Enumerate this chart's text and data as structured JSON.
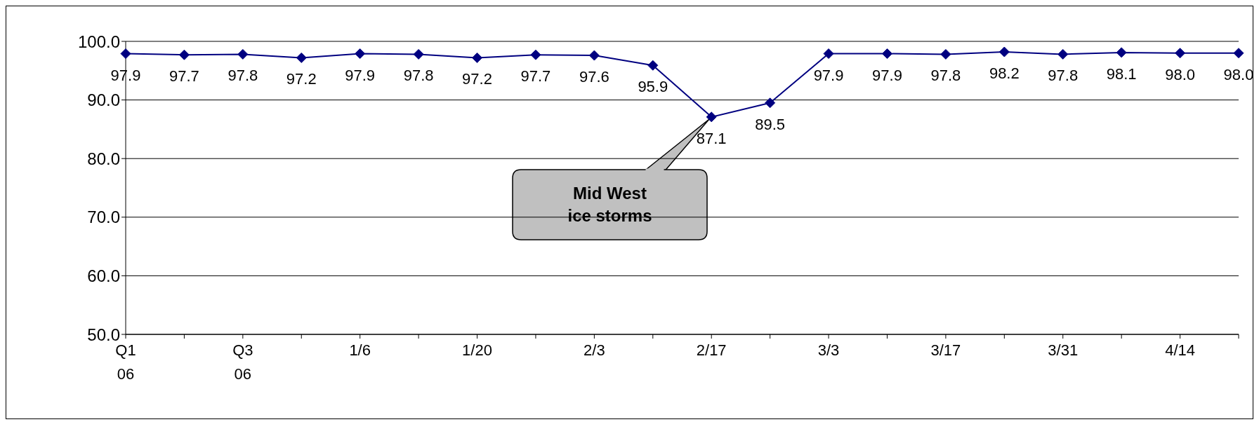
{
  "chart_data": {
    "type": "line",
    "categories": [
      "Q1 06",
      null,
      "Q3 06",
      null,
      "1/6",
      null,
      "1/20",
      null,
      "2/3",
      null,
      "2/17",
      null,
      "3/3",
      null,
      "3/17",
      null,
      "3/31",
      null,
      "4/14",
      null
    ],
    "series": [
      {
        "color": "#000080",
        "values": [
          97.9,
          97.7,
          97.8,
          97.2,
          97.9,
          97.8,
          97.2,
          97.7,
          97.6,
          95.9,
          87.1,
          89.5,
          97.9,
          97.9,
          97.8,
          98.2,
          97.8,
          98.1,
          98.0,
          98.0
        ],
        "value_labels": [
          "97.9",
          "97.7",
          "97.8",
          "97.2",
          "97.9",
          "97.8",
          "97.2",
          "97.7",
          "97.6",
          "95.9",
          "87.1",
          "89.5",
          "97.9",
          "97.9",
          "97.8",
          "98.2",
          "97.8",
          "98.1",
          "98.0",
          "98.0"
        ]
      }
    ],
    "ylim": [
      50,
      100
    ],
    "yticks": [
      {
        "value": 50,
        "label": "50.0"
      },
      {
        "value": 60,
        "label": "60.0"
      },
      {
        "value": 70,
        "label": "70.0"
      },
      {
        "value": 80,
        "label": "80.0"
      },
      {
        "value": 90,
        "label": "90.0"
      },
      {
        "value": 100,
        "label": "100.0"
      }
    ],
    "grid": "y",
    "marker": "diamond",
    "line_style": "solid",
    "legend": false,
    "annotations": [
      "Mid West ice storms"
    ]
  }
}
